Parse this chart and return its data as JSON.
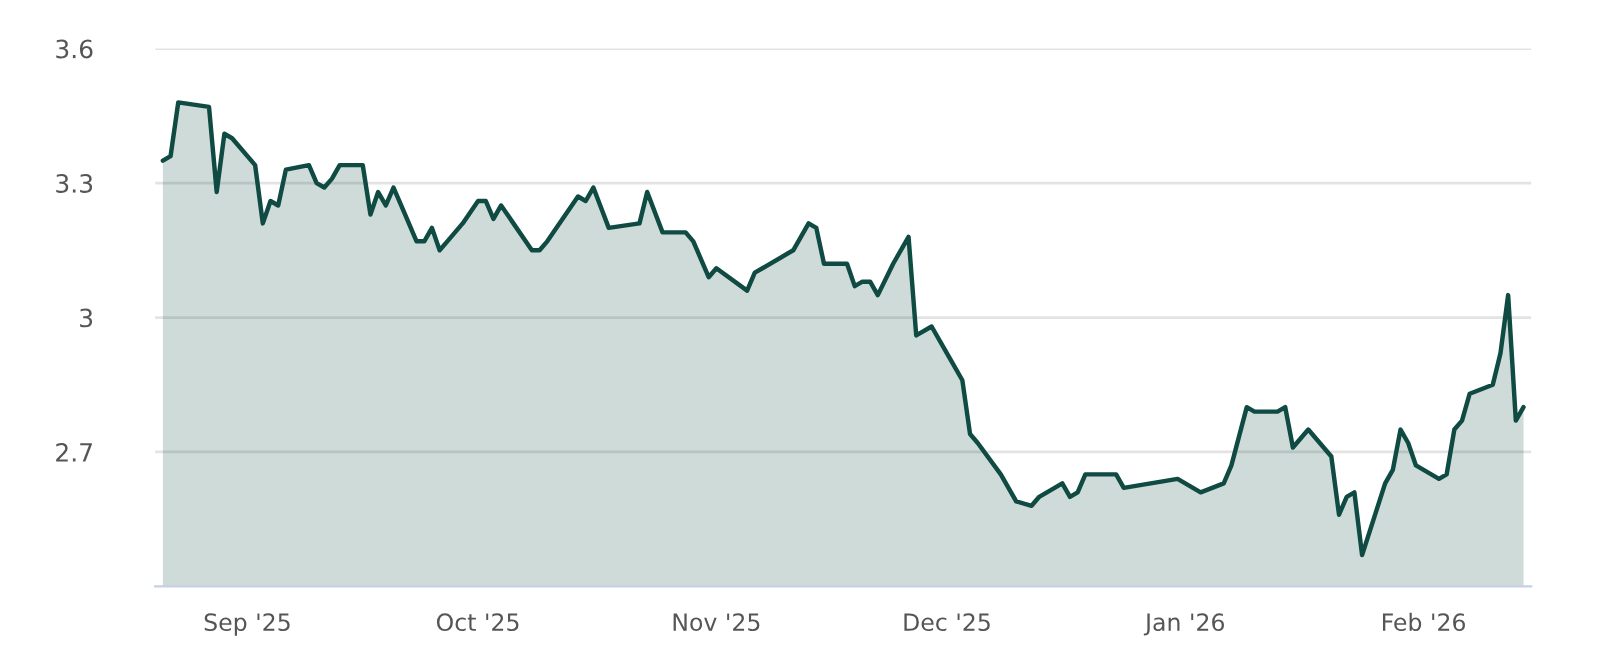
{
  "chart_data": {
    "type": "area",
    "x": [
      "2025-08-21",
      "2025-08-22",
      "2025-08-23",
      "2025-08-27",
      "2025-08-28",
      "2025-08-29",
      "2025-08-30",
      "2025-09-02",
      "2025-09-03",
      "2025-09-04",
      "2025-09-05",
      "2025-09-06",
      "2025-09-09",
      "2025-09-10",
      "2025-09-11",
      "2025-09-12",
      "2025-09-13",
      "2025-09-16",
      "2025-09-17",
      "2025-09-18",
      "2025-09-19",
      "2025-09-20",
      "2025-09-21",
      "2025-09-23",
      "2025-09-24",
      "2025-09-25",
      "2025-09-26",
      "2025-09-27",
      "2025-09-29",
      "2025-10-01",
      "2025-10-02",
      "2025-10-03",
      "2025-10-04",
      "2025-10-06",
      "2025-10-08",
      "2025-10-09",
      "2025-10-10",
      "2025-10-14",
      "2025-10-15",
      "2025-10-16",
      "2025-10-18",
      "2025-10-22",
      "2025-10-23",
      "2025-10-25",
      "2025-10-28",
      "2025-10-29",
      "2025-10-31",
      "2025-11-01",
      "2025-11-05",
      "2025-11-06",
      "2025-11-07",
      "2025-11-11",
      "2025-11-13",
      "2025-11-14",
      "2025-11-15",
      "2025-11-18",
      "2025-11-19",
      "2025-11-20",
      "2025-11-21",
      "2025-11-22",
      "2025-11-24",
      "2025-11-26",
      "2025-11-27",
      "2025-11-29",
      "2025-12-01",
      "2025-12-03",
      "2025-12-04",
      "2025-12-05",
      "2025-12-08",
      "2025-12-10",
      "2025-12-12",
      "2025-12-13",
      "2025-12-16",
      "2025-12-17",
      "2025-12-18",
      "2025-12-19",
      "2025-12-23",
      "2025-12-24",
      "2025-12-31",
      "2026-01-03",
      "2026-01-06",
      "2026-01-07",
      "2026-01-09",
      "2026-01-10",
      "2026-01-13",
      "2026-01-14",
      "2026-01-15",
      "2026-01-17",
      "2026-01-20",
      "2026-01-21",
      "2026-01-22",
      "2026-01-23",
      "2026-01-24",
      "2026-01-27",
      "2026-01-28",
      "2026-01-29",
      "2026-01-30",
      "2026-01-31",
      "2026-02-03",
      "2026-02-04",
      "2026-02-05",
      "2026-02-06",
      "2026-02-07",
      "2026-02-10",
      "2026-02-11",
      "2026-02-12",
      "2026-02-13",
      "2026-02-14"
    ],
    "series": [
      {
        "color": "#0f4a43",
        "values": [
          3.35,
          3.36,
          3.48,
          3.47,
          3.28,
          3.41,
          3.4,
          3.34,
          3.21,
          3.26,
          3.25,
          3.33,
          3.34,
          3.3,
          3.29,
          3.31,
          3.34,
          3.34,
          3.23,
          3.28,
          3.25,
          3.29,
          3.25,
          3.17,
          3.17,
          3.2,
          3.15,
          3.17,
          3.21,
          3.26,
          3.26,
          3.22,
          3.25,
          3.2,
          3.15,
          3.15,
          3.17,
          3.27,
          3.26,
          3.29,
          3.2,
          3.21,
          3.28,
          3.19,
          3.19,
          3.17,
          3.09,
          3.11,
          3.06,
          3.1,
          3.11,
          3.15,
          3.21,
          3.2,
          3.12,
          3.12,
          3.07,
          3.08,
          3.08,
          3.05,
          3.12,
          3.18,
          2.96,
          2.98,
          2.92,
          2.86,
          2.74,
          2.72,
          2.65,
          2.59,
          2.58,
          2.6,
          2.63,
          2.6,
          2.61,
          2.65,
          2.65,
          2.62,
          2.64,
          2.61,
          2.63,
          2.67,
          2.8,
          2.79,
          2.79,
          2.8,
          2.71,
          2.75,
          2.69,
          2.56,
          2.6,
          2.61,
          2.47,
          2.63,
          2.66,
          2.75,
          2.72,
          2.67,
          2.64,
          2.65,
          2.75,
          2.77,
          2.83,
          2.85,
          2.92,
          3.05,
          2.77,
          2.8
        ]
      }
    ],
    "xlim": [
      "2025-08-20",
      "2026-02-15"
    ],
    "xticks": [
      {
        "value": "2025-09-01",
        "label": "Sep '25"
      },
      {
        "value": "2025-10-01",
        "label": "Oct '25"
      },
      {
        "value": "2025-11-01",
        "label": "Nov '25"
      },
      {
        "value": "2025-12-01",
        "label": "Dec '25"
      },
      {
        "value": "2026-01-01",
        "label": "Jan '26"
      },
      {
        "value": "2026-02-01",
        "label": "Feb '26"
      }
    ],
    "ylim": [
      2.4,
      3.6
    ],
    "yticks": [
      2.7,
      3,
      3.3,
      3.6
    ],
    "grid": "y",
    "legend": false,
    "marker": "none",
    "line_style": "solid"
  }
}
